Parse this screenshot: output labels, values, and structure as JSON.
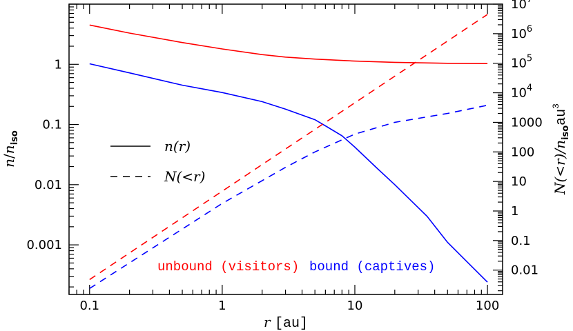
{
  "chart_data": {
    "type": "line",
    "x_axis": {
      "scale": "log",
      "range": [
        0.07,
        130
      ],
      "title": {
        "var": "r",
        "unit": "[au]"
      },
      "ticks": [
        {
          "value": 0.1,
          "label": "0.1"
        },
        {
          "value": 1,
          "label": "1"
        },
        {
          "value": 10,
          "label": "10"
        },
        {
          "value": 100,
          "label": "100"
        }
      ]
    },
    "y_axis_left": {
      "scale": "log",
      "range": [
        0.00015,
        10
      ],
      "title": {
        "num": "n",
        "den": "n",
        "sub": "iso"
      },
      "ticks": [
        {
          "value": 1,
          "label": "1"
        },
        {
          "value": 0.1,
          "label": "0.1"
        },
        {
          "value": 0.01,
          "label": "0.01"
        },
        {
          "value": 0.001,
          "label": "0.001"
        }
      ]
    },
    "y_axis_right": {
      "scale": "log",
      "range": [
        0.0015,
        10000000
      ],
      "title": {
        "left": "N(<r)/n",
        "sub": "iso",
        "unit": "au",
        "sup": "3"
      },
      "ticks": [
        {
          "value": 10000000,
          "base": "10",
          "exp": "7"
        },
        {
          "value": 1000000,
          "base": "10",
          "exp": "6"
        },
        {
          "value": 100000,
          "base": "10",
          "exp": "5"
        },
        {
          "value": 10000,
          "base": "10",
          "exp": "4"
        },
        {
          "value": 1000,
          "label": "1000"
        },
        {
          "value": 100,
          "label": "100"
        },
        {
          "value": 10,
          "label": "10"
        },
        {
          "value": 1,
          "label": "1"
        },
        {
          "value": 0.1,
          "label": "0.1"
        },
        {
          "value": 0.01,
          "label": "0.01"
        }
      ]
    },
    "legend": {
      "placement": "left-middle",
      "entries": [
        {
          "style": "solid",
          "label": "n(r)"
        },
        {
          "style": "dashed",
          "label": "N(<r)"
        }
      ]
    },
    "annotations": [
      {
        "text": "unbound (visitors)",
        "color": "#ff0000"
      },
      {
        "text": "bound (captives)",
        "color": "#0000ff"
      }
    ],
    "series": [
      {
        "group": "unbound (visitors)",
        "quantity": "n(r)",
        "axis": "left",
        "style": "solid",
        "color": "#ff0000",
        "points": [
          [
            0.1,
            4.5
          ],
          [
            0.2,
            3.3
          ],
          [
            0.5,
            2.3
          ],
          [
            1,
            1.8
          ],
          [
            2,
            1.45
          ],
          [
            3,
            1.32
          ],
          [
            5,
            1.22
          ],
          [
            10,
            1.13
          ],
          [
            20,
            1.08
          ],
          [
            50,
            1.04
          ],
          [
            100,
            1.03
          ]
        ]
      },
      {
        "group": "bound (captives)",
        "quantity": "n(r)",
        "axis": "left",
        "style": "solid",
        "color": "#0000ff",
        "points": [
          [
            0.1,
            1.02
          ],
          [
            0.2,
            0.72
          ],
          [
            0.5,
            0.45
          ],
          [
            1,
            0.34
          ],
          [
            2,
            0.24
          ],
          [
            3,
            0.18
          ],
          [
            5,
            0.12
          ],
          [
            6,
            0.095
          ],
          [
            8,
            0.065
          ],
          [
            10,
            0.042
          ],
          [
            15,
            0.018
          ],
          [
            20,
            0.01
          ],
          [
            35,
            0.003
          ],
          [
            50,
            0.0011
          ],
          [
            100,
            0.00024
          ]
        ]
      },
      {
        "group": "unbound (visitors)",
        "quantity": "N(<r)",
        "axis": "right",
        "style": "dashed",
        "color": "#ff0000",
        "points": [
          [
            0.1,
            0.0048
          ],
          [
            100,
            4500000
          ]
        ]
      },
      {
        "group": "bound (captives)",
        "quantity": "N(<r)",
        "axis": "right",
        "style": "dashed",
        "color": "#0000ff",
        "points": [
          [
            0.1,
            0.0024
          ],
          [
            1,
            1.8
          ],
          [
            3,
            30
          ],
          [
            5,
            100
          ],
          [
            10,
            400
          ],
          [
            20,
            1000
          ],
          [
            50,
            2000
          ],
          [
            100,
            3800
          ]
        ]
      }
    ]
  }
}
